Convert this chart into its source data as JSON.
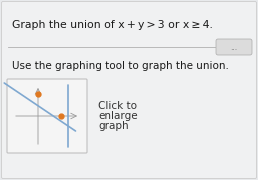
{
  "title": "Graph the union of x + y > 3 or x ≥ 4.",
  "subtitle": "Use the graphing tool to graph the union.",
  "btn1": "Click to",
  "btn2": "enlarge",
  "btn3": "graph",
  "bg_color": "#e8eaec",
  "panel_color": "#f0f1f2",
  "sep_color": "#b0b0b0",
  "pill_bg": "#dcdcdc",
  "pill_text": "...",
  "thumb_bg": "#f5f5f5",
  "thumb_border": "#c0c0c0",
  "axis_color": "#999999",
  "line_color": "#7fa8d0",
  "dot_color": "#e07820",
  "text_color": "#1a1a1a",
  "sub_color": "#1a1a1a",
  "click_color": "#333333"
}
